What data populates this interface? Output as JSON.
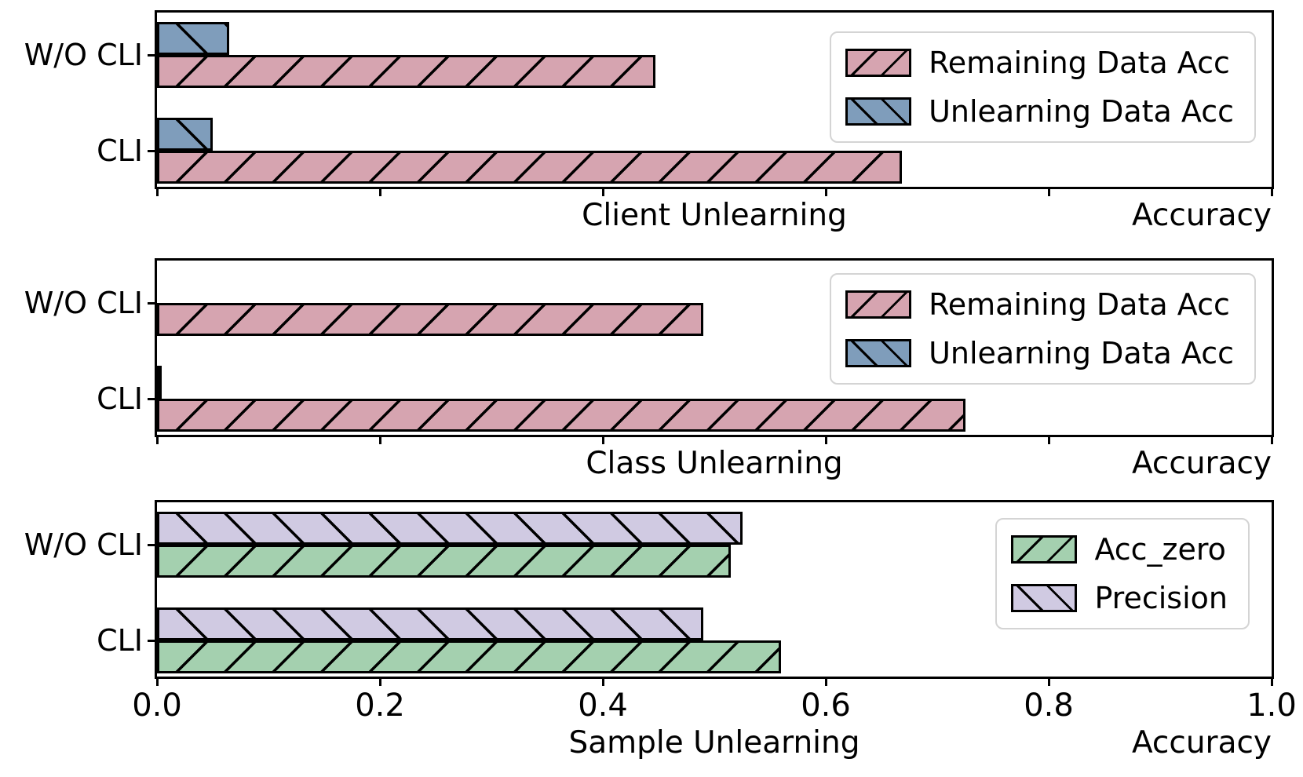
{
  "figure": {
    "background": "#ffffff",
    "axis_color": "#000000",
    "hatch_color": "#000000"
  },
  "chart_data": [
    {
      "type": "bar",
      "orientation": "horizontal",
      "categories": [
        "W/O CLI",
        "CLI"
      ],
      "series": [
        {
          "name": "Remaining Data Acc",
          "color": "#d6a4b0",
          "hatch": "/",
          "values": [
            0.447,
            0.668
          ]
        },
        {
          "name": "Unlearning Data Acc",
          "color": "#7f9dbb",
          "hatch": "\\",
          "values": [
            0.065,
            0.05
          ]
        }
      ],
      "xlabel": "Client Unlearning",
      "right_label": "Accuracy",
      "xlim": [
        0.0,
        1.0
      ],
      "xticks": [
        0.0,
        0.2,
        0.4,
        0.6,
        0.8,
        1.0
      ],
      "xtick_labels": [],
      "show_tick_labels": false,
      "grid": false,
      "legend": {
        "position": "upper right",
        "entries": [
          "Remaining Data Acc",
          "Unlearning Data Acc"
        ]
      }
    },
    {
      "type": "bar",
      "orientation": "horizontal",
      "categories": [
        "W/O CLI",
        "CLI"
      ],
      "series": [
        {
          "name": "Remaining Data Acc",
          "color": "#d6a4b0",
          "hatch": "/",
          "values": [
            0.49,
            0.725
          ]
        },
        {
          "name": "Unlearning Data Acc",
          "color": "#7f9dbb",
          "hatch": "\\",
          "values": [
            0.0,
            0.002
          ]
        }
      ],
      "xlabel": "Class Unlearning",
      "right_label": "Accuracy",
      "xlim": [
        0.0,
        1.0
      ],
      "xticks": [
        0.0,
        0.2,
        0.4,
        0.6,
        0.8,
        1.0
      ],
      "xtick_labels": [],
      "show_tick_labels": false,
      "grid": false,
      "legend": {
        "position": "upper right",
        "entries": [
          "Remaining Data Acc",
          "Unlearning Data Acc"
        ]
      }
    },
    {
      "type": "bar",
      "orientation": "horizontal",
      "categories": [
        "W/O CLI",
        "CLI"
      ],
      "series": [
        {
          "name": "Acc_zero",
          "color": "#a4d0af",
          "hatch": "/",
          "values": [
            0.515,
            0.56
          ]
        },
        {
          "name": "Precision",
          "color": "#d0cae2",
          "hatch": "\\",
          "values": [
            0.525,
            0.49
          ]
        }
      ],
      "xlabel": "Sample Unlearning",
      "right_label": "Accuracy",
      "xlim": [
        0.0,
        1.0
      ],
      "xticks": [
        0.0,
        0.2,
        0.4,
        0.6,
        0.8,
        1.0
      ],
      "xtick_labels": [
        "0.0",
        "0.2",
        "0.4",
        "0.6",
        "0.8",
        "1.0"
      ],
      "show_tick_labels": true,
      "grid": false,
      "legend": {
        "position": "upper right",
        "entries": [
          "Acc_zero",
          "Precision"
        ]
      }
    }
  ]
}
